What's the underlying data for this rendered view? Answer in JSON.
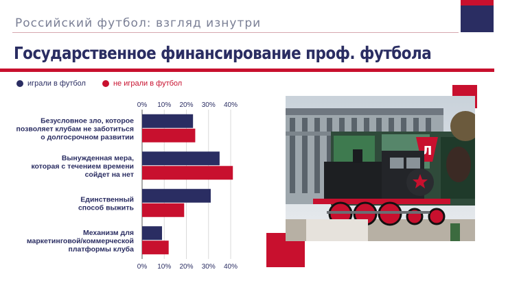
{
  "header": {
    "deck_title": "Российский футбол: взгляд изнутри",
    "slide_title": "Государственное финансирование проф. футбола"
  },
  "colors": {
    "navy": "#2a2d62",
    "red": "#c8102e"
  },
  "legend": [
    {
      "label": "играли в футбол",
      "color": "#2a2d62"
    },
    {
      "label": "не играли в футбол",
      "color": "#c8102e"
    }
  ],
  "chart_data": {
    "type": "bar",
    "orientation": "horizontal",
    "xlim": [
      0,
      40
    ],
    "xticks": [
      "0%",
      "10%",
      "20%",
      "30%",
      "40%"
    ],
    "grid": true,
    "legend_placement": "top-left",
    "categories": [
      [
        "Безусловное зло, которое",
        "позволяет клубам не заботиться",
        "о долгосрочном развитии"
      ],
      [
        "Вынужденная мера,",
        "которая с течением времени",
        "сойдет на нет"
      ],
      [
        "Единственный",
        "способ выжить"
      ],
      [
        "Механизм для",
        "маркетинговой/коммерческой",
        "платформы клуба"
      ]
    ],
    "series": [
      {
        "name": "играли в футбол",
        "color": "#2a2d62",
        "values": [
          23,
          35,
          31,
          9
        ]
      },
      {
        "name": "не играли в футбол",
        "color": "#c8102e",
        "values": [
          24,
          41,
          19,
          12
        ]
      }
    ]
  },
  "image": {
    "subject": "steam-locomotive-photo"
  }
}
